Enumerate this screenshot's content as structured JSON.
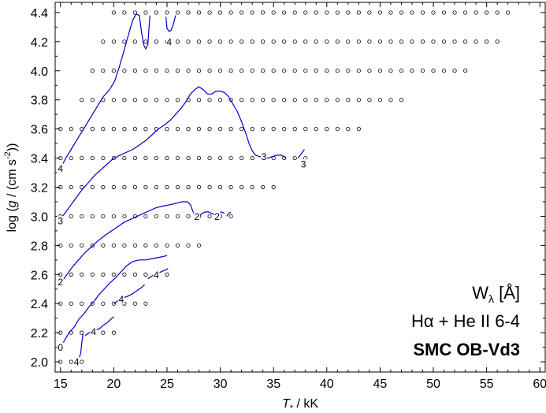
{
  "chart_data": {
    "type": "scatter",
    "xlabel_parts": {
      "symbol": "T",
      "subscript": "*",
      "unit": " / kK"
    },
    "ylabel_parts": {
      "pre": "log (",
      "symbol": "g",
      "post": " / (cm s",
      "sup": "-2",
      "close": "))"
    },
    "xlim": [
      14.5,
      60.5
    ],
    "ylim": [
      1.93,
      4.47
    ],
    "x_ticks": [
      15,
      20,
      25,
      30,
      35,
      40,
      45,
      50,
      55,
      60
    ],
    "x_tick_labels": [
      "15",
      "20",
      "25",
      "30",
      "35",
      "40",
      "45",
      "50",
      "55",
      "60"
    ],
    "y_ticks": [
      2.0,
      2.2,
      2.4,
      2.6,
      2.8,
      3.0,
      3.2,
      3.4,
      3.6,
      3.8,
      4.0,
      4.2,
      4.4
    ],
    "y_tick_labels": [
      "2.0",
      "2.2",
      "2.4",
      "2.6",
      "2.8",
      "3.0",
      "3.2",
      "3.4",
      "3.6",
      "3.8",
      "4.0",
      "4.2",
      "4.4"
    ],
    "grid": false,
    "model_grid": [
      {
        "logg": 2.0,
        "teff": [
          15,
          16,
          17
        ]
      },
      {
        "logg": 2.2,
        "teff": [
          15,
          16,
          17,
          18,
          19,
          20
        ]
      },
      {
        "logg": 2.4,
        "teff": [
          15,
          16,
          17,
          18,
          19,
          20,
          21,
          22,
          23
        ]
      },
      {
        "logg": 2.6,
        "teff": [
          15,
          16,
          17,
          18,
          19,
          20,
          21,
          22,
          23,
          24,
          25
        ]
      },
      {
        "logg": 2.8,
        "teff": [
          15,
          16,
          17,
          18,
          19,
          20,
          21,
          22,
          23,
          24,
          25,
          26,
          27,
          28
        ]
      },
      {
        "logg": 3.0,
        "teff": [
          15,
          16,
          17,
          18,
          19,
          20,
          21,
          22,
          23,
          24,
          25,
          26,
          27,
          28,
          29,
          30,
          31
        ]
      },
      {
        "logg": 3.2,
        "teff": [
          15,
          16,
          17,
          18,
          19,
          20,
          21,
          22,
          23,
          24,
          25,
          26,
          27,
          28,
          29,
          30,
          31,
          32,
          33,
          34,
          35
        ]
      },
      {
        "logg": 3.4,
        "teff": [
          15,
          16,
          17,
          18,
          19,
          20,
          21,
          22,
          23,
          24,
          25,
          26,
          27,
          28,
          29,
          30,
          31,
          32,
          33,
          34,
          35,
          36,
          37,
          38
        ]
      },
      {
        "logg": 3.6,
        "teff": [
          15,
          16,
          17,
          18,
          19,
          20,
          21,
          22,
          23,
          24,
          25,
          26,
          27,
          28,
          29,
          30,
          31,
          32,
          33,
          34,
          35,
          36,
          37,
          38,
          39,
          40,
          41,
          42,
          43
        ]
      },
      {
        "logg": 3.8,
        "teff": [
          17,
          18,
          19,
          20,
          21,
          22,
          23,
          24,
          25,
          26,
          27,
          28,
          29,
          30,
          31,
          32,
          33,
          34,
          35,
          36,
          37,
          38,
          39,
          40,
          41,
          42,
          43,
          44,
          45,
          46,
          47
        ]
      },
      {
        "logg": 4.0,
        "teff": [
          18,
          19,
          20,
          21,
          22,
          23,
          24,
          25,
          26,
          27,
          28,
          29,
          30,
          31,
          32,
          33,
          34,
          35,
          36,
          37,
          38,
          39,
          40,
          41,
          42,
          43,
          44,
          45,
          46,
          47,
          48,
          49,
          50,
          51,
          52,
          53
        ]
      },
      {
        "logg": 4.2,
        "teff": [
          19,
          20,
          21,
          22,
          23,
          24,
          25,
          26,
          27,
          28,
          29,
          30,
          31,
          32,
          33,
          34,
          35,
          36,
          37,
          38,
          39,
          40,
          41,
          42,
          43,
          44,
          45,
          46,
          47,
          48,
          49,
          50,
          51,
          52,
          53,
          54,
          55,
          56
        ]
      },
      {
        "logg": 4.4,
        "teff": [
          20,
          21,
          22,
          23,
          24,
          25,
          26,
          27,
          28,
          29,
          30,
          31,
          32,
          33,
          34,
          35,
          36,
          37,
          38,
          39,
          40,
          41,
          42,
          43,
          44,
          45,
          46,
          47,
          48,
          49,
          50,
          51,
          52,
          53,
          54,
          55,
          56,
          57
        ]
      }
    ],
    "contours": [
      {
        "level": "4",
        "x": [
          16.6,
          16.9,
          17.0,
          17.1
        ],
        "y": [
          1.99,
          2.06,
          2.13,
          2.19
        ]
      },
      {
        "level": "4",
        "x": [
          17.3,
          17.7,
          18.1,
          18.4,
          18.7,
          19.0,
          19.4,
          19.7,
          20.0
        ],
        "y": [
          2.18,
          2.2,
          2.21,
          2.22,
          2.23,
          2.25,
          2.27,
          2.29,
          2.31
        ]
      },
      {
        "level": "4",
        "x": [
          20.0,
          20.4,
          20.9,
          21.3,
          21.8,
          22.2,
          22.6,
          22.9
        ],
        "y": [
          2.4,
          2.42,
          2.44,
          2.45,
          2.47,
          2.49,
          2.51,
          2.53
        ]
      },
      {
        "level": "4",
        "x": [
          23.2,
          23.6,
          23.9,
          24.2,
          24.5,
          24.8,
          25.1
        ],
        "y": [
          2.57,
          2.59,
          2.6,
          2.61,
          2.62,
          2.63,
          2.64
        ]
      },
      {
        "level": "0",
        "x": [
          15.0,
          15.4,
          15.8,
          16.3,
          16.7,
          17.2,
          17.7,
          18.2,
          18.6,
          19.1,
          19.6,
          20.2,
          20.7,
          21.2,
          21.8,
          22.4,
          23.0,
          23.7,
          24.4,
          25.0
        ],
        "y": [
          2.1,
          2.15,
          2.2,
          2.24,
          2.29,
          2.33,
          2.38,
          2.42,
          2.46,
          2.5,
          2.54,
          2.58,
          2.62,
          2.66,
          2.69,
          2.7,
          2.7,
          2.71,
          2.72,
          2.73
        ]
      },
      {
        "level": "2",
        "x": [
          15.1,
          15.6,
          16.1,
          16.7,
          17.3,
          17.9,
          18.5,
          19.2,
          19.8,
          20.4,
          21.0,
          21.6,
          22.2,
          22.8,
          23.4,
          24.0,
          24.6,
          25.3,
          25.9,
          26.4,
          26.9,
          27.2,
          27.4,
          27.6,
          27.8
        ],
        "y": [
          2.55,
          2.6,
          2.65,
          2.7,
          2.75,
          2.79,
          2.83,
          2.87,
          2.9,
          2.93,
          2.96,
          2.98,
          3.0,
          3.02,
          3.04,
          3.06,
          3.07,
          3.08,
          3.09,
          3.1,
          3.1,
          3.08,
          3.04,
          3.01,
          3.0
        ]
      },
      {
        "level": "2",
        "x": [
          28.0,
          28.3,
          28.6,
          28.9,
          29.2,
          29.5,
          29.8,
          30.1,
          30.4
        ],
        "y": [
          3.0,
          3.02,
          3.03,
          3.03,
          3.02,
          3.01,
          3.02,
          3.03,
          3.02
        ]
      },
      {
        "level": "2",
        "x": [
          30.6,
          30.8,
          31.0
        ],
        "y": [
          3.0,
          3.02,
          3.03
        ]
      },
      {
        "level": "3",
        "x": [
          15.0,
          15.5,
          16.0,
          16.5,
          17.0,
          17.6,
          18.2,
          18.8,
          19.4,
          20.0,
          20.6,
          21.2,
          21.8,
          22.4,
          23.0,
          23.6,
          24.2,
          24.8,
          25.3,
          25.8,
          26.3,
          26.8,
          27.2,
          27.6,
          28.0,
          28.4,
          28.8,
          29.2,
          29.6,
          30.0,
          30.4,
          30.8,
          31.2,
          31.6,
          32.0,
          32.4,
          32.7,
          33.0,
          33.3,
          33.7,
          34.1,
          34.5,
          34.9,
          35.3,
          35.7,
          36.0,
          36.2
        ],
        "y": [
          2.98,
          3.03,
          3.08,
          3.13,
          3.18,
          3.23,
          3.28,
          3.32,
          3.36,
          3.4,
          3.42,
          3.44,
          3.46,
          3.49,
          3.52,
          3.56,
          3.6,
          3.63,
          3.66,
          3.7,
          3.74,
          3.79,
          3.84,
          3.87,
          3.89,
          3.87,
          3.84,
          3.84,
          3.86,
          3.86,
          3.85,
          3.82,
          3.77,
          3.72,
          3.65,
          3.57,
          3.5,
          3.45,
          3.42,
          3.41,
          3.4,
          3.4,
          3.41,
          3.42,
          3.42,
          3.41,
          3.4
        ]
      },
      {
        "level": "3",
        "x": [
          37.3,
          37.6,
          37.9
        ],
        "y": [
          3.4,
          3.43,
          3.46
        ]
      },
      {
        "level": "4",
        "x": [
          15.0,
          15.5,
          16.0,
          16.5,
          17.0,
          17.5,
          18.0,
          18.5,
          19.0,
          19.6,
          20.1,
          20.5,
          20.9,
          21.2,
          21.5,
          21.8,
          22.1,
          22.4,
          22.6,
          22.8,
          23.0,
          23.2,
          23.4
        ],
        "y": [
          3.33,
          3.4,
          3.46,
          3.52,
          3.58,
          3.64,
          3.7,
          3.76,
          3.82,
          3.87,
          3.93,
          4.02,
          4.12,
          4.2,
          4.28,
          4.35,
          4.39,
          4.38,
          4.27,
          4.18,
          4.15,
          4.18,
          4.38
        ]
      },
      {
        "level": "4",
        "x": [
          24.9,
          25.0,
          25.2,
          25.4,
          25.6,
          25.8
        ],
        "y": [
          4.37,
          4.29,
          4.27,
          4.28,
          4.32,
          4.38
        ]
      }
    ],
    "contour_labels": [
      {
        "text": "0",
        "x": 15.0,
        "y": 2.1
      },
      {
        "text": "2",
        "x": 15.0,
        "y": 2.55
      },
      {
        "text": "3",
        "x": 15.0,
        "y": 2.97
      },
      {
        "text": "4",
        "x": 15.0,
        "y": 3.33
      },
      {
        "text": "4",
        "x": 16.5,
        "y": 2.0
      },
      {
        "text": "4",
        "x": 18.1,
        "y": 2.21
      },
      {
        "text": "4",
        "x": 20.7,
        "y": 2.43
      },
      {
        "text": "4",
        "x": 24.0,
        "y": 2.6
      },
      {
        "text": "2",
        "x": 27.8,
        "y": 3.0
      },
      {
        "text": "2",
        "x": 29.7,
        "y": 3.0
      },
      {
        "text": "3",
        "x": 34.1,
        "y": 3.41
      },
      {
        "text": "3",
        "x": 37.8,
        "y": 3.36
      },
      {
        "text": "4",
        "x": 25.2,
        "y": 4.2
      }
    ],
    "annotation": {
      "quantity_base": "W",
      "quantity_sub": "λ",
      "quantity_unit": "  [Å]",
      "line_label": "Hα + He II 6-4",
      "model_label": "SMC OB-Vd3"
    },
    "colors": {
      "contour": "#0000cc",
      "axis": "#000000",
      "marker": "#000000"
    }
  }
}
